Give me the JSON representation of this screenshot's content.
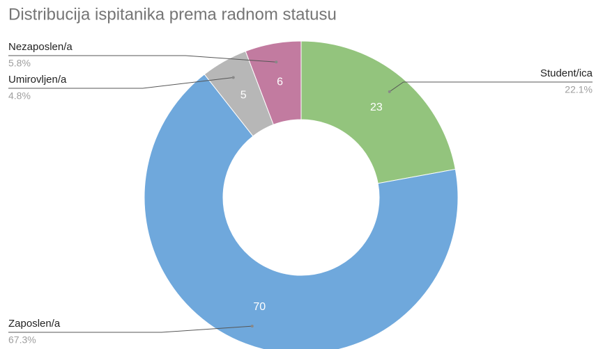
{
  "chart_data": {
    "type": "donut",
    "title": "Distribucija ispitanika prema radnom statusu",
    "categories": [
      "Student/ica",
      "Zaposlen/a",
      "Umirovljen/a",
      "Nezaposlen/a"
    ],
    "values": [
      23,
      70,
      5,
      6
    ],
    "percent_labels": [
      "22.1%",
      "67.3%",
      "4.8%",
      "5.8%"
    ],
    "colors": [
      "#93c47d",
      "#6fa8dc",
      "#b7b7b7",
      "#c27ba0"
    ]
  }
}
